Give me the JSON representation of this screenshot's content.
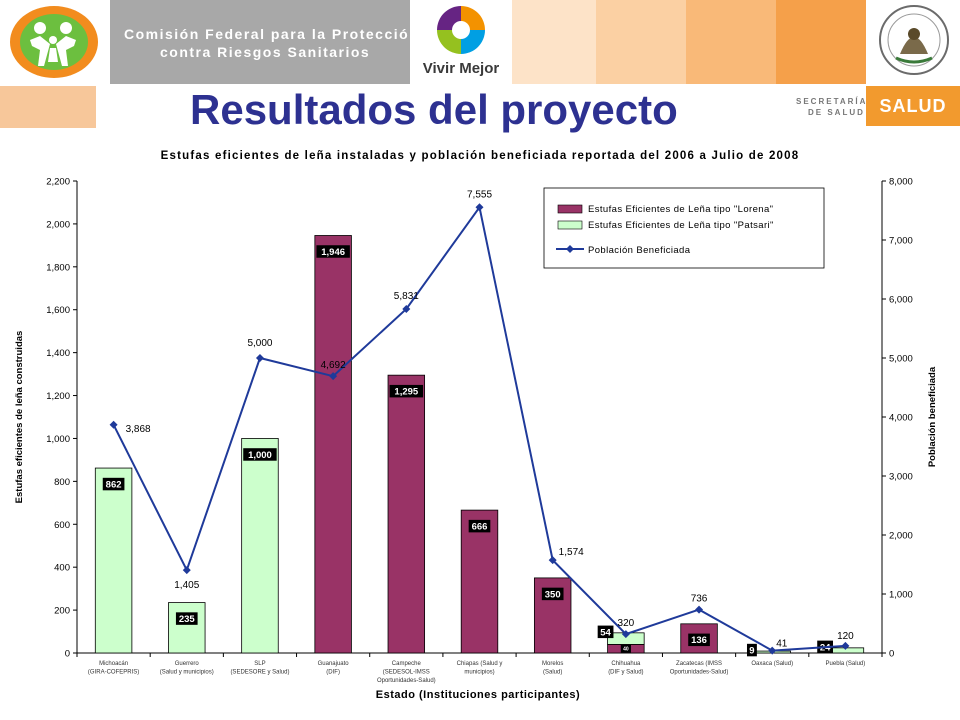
{
  "header": {
    "agency_line1": "Comisión Federal para la Protección",
    "agency_line2": "contra Riesgos Sanitarios",
    "vivir_mejor": "Vivir Mejor",
    "page_title": "Resultados del proyecto",
    "secretaria_line1": "SECRETARÍA",
    "secretaria_line2": "DE SALUD",
    "salud": "SALUD"
  },
  "colors": {
    "lorena": "#993366",
    "patsari": "#ccffcc",
    "line": "#1f3a9a",
    "title_blue": "#2d3191",
    "orange": "#f29a2e"
  },
  "chart_data": {
    "type": "bar",
    "title": "Estufas eficientes de leña instaladas y población beneficiada reportada del 2006 a Julio de 2008",
    "xlabel": "Estado (Instituciones participantes)",
    "ylabel": "Estufas eficientes de leña construidas",
    "y2label": "Población beneficiada",
    "ylim": [
      0,
      2200
    ],
    "y2lim": [
      0,
      8000
    ],
    "yticks": [
      "0",
      "200",
      "400",
      "600",
      "800",
      "1,000",
      "1,200",
      "1,400",
      "1,600",
      "1,800",
      "2,000",
      "2,200"
    ],
    "y2ticks": [
      "0",
      "1,000",
      "2,000",
      "3,000",
      "4,000",
      "5,000",
      "6,000",
      "7,000",
      "8,000"
    ],
    "categories": [
      [
        "Michoacán",
        "(GIRA-COFEPRIS)"
      ],
      [
        "Guerrero",
        "(Salud y municipios)"
      ],
      [
        "SLP",
        "(SEDESORE y Salud)"
      ],
      [
        "Guanajuato",
        "(DIF)"
      ],
      [
        "Campeche",
        "(SEDESOL-IMSS",
        "Oportunidades-Salud)"
      ],
      [
        "Chiapas (Salud y",
        "municipios)"
      ],
      [
        "Morelos",
        "(Salud)"
      ],
      [
        "Chihuahua",
        "(DIF y Salud)"
      ],
      [
        "Zacatecas (IMSS",
        "Oportunidades-Salud)"
      ],
      [
        "Oaxaca (Salud)"
      ],
      [
        "Puebla (Salud)"
      ]
    ],
    "series": [
      {
        "name": "Estufas Eficientes de Leña tipo \"Lorena\"",
        "values": [
          0,
          0,
          0,
          1946,
          1295,
          666,
          350,
          40,
          136,
          0,
          0
        ],
        "labels": [
          "",
          "",
          "",
          "1,946",
          "1,295",
          "666",
          "350",
          "40",
          "136",
          "",
          ""
        ]
      },
      {
        "name": "Estufas Eficientes de Leña tipo \"Patsari\"",
        "values": [
          862,
          235,
          1000,
          0,
          0,
          0,
          0,
          54,
          0,
          9,
          24
        ],
        "labels": [
          "862",
          "235",
          "1,000",
          "",
          "",
          "",
          "",
          "54",
          "",
          "9",
          "24"
        ]
      },
      {
        "name": "Población Beneficiada",
        "axis": "right",
        "values": [
          3868,
          1405,
          5000,
          4692,
          5831,
          7555,
          1574,
          320,
          736,
          41,
          120
        ],
        "labels": [
          "3,868",
          "1,405",
          "5,000",
          "4,692",
          "5,831",
          "7,555",
          "1,574",
          "320",
          "736",
          "41",
          "120"
        ]
      }
    ],
    "legend_position": "top-right",
    "grid": false
  }
}
